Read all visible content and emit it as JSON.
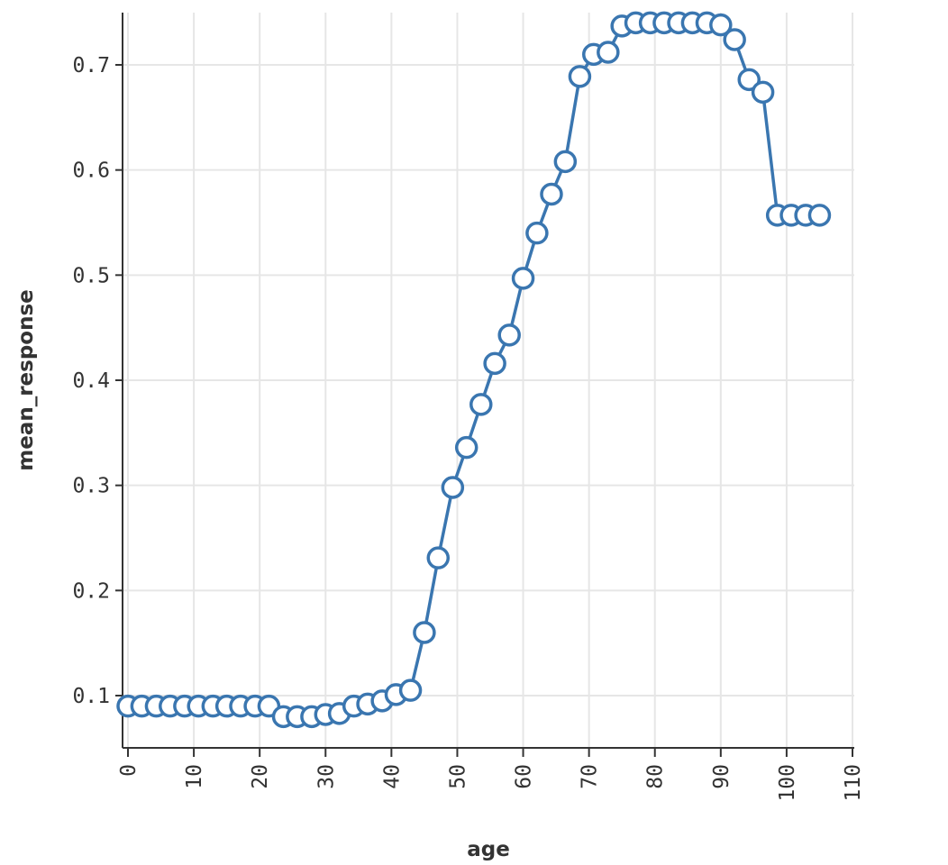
{
  "colors": {
    "series": "#3a76b0",
    "background": "#ffffff"
  },
  "chart_data": {
    "type": "line",
    "title": "",
    "xlabel": "age",
    "ylabel": "mean_response",
    "xlim": [
      0,
      110
    ],
    "ylim": [
      0.05,
      0.74
    ],
    "grid": true,
    "x_ticks": [
      0,
      10,
      20,
      30,
      40,
      50,
      60,
      70,
      80,
      90,
      100,
      110
    ],
    "y_ticks": [
      0.1,
      0.2,
      0.3,
      0.4,
      0.5,
      0.6,
      0.7
    ],
    "x_tick_labels": [
      "0",
      "10",
      "20",
      "30",
      "40",
      "50",
      "60",
      "70",
      "80",
      "90",
      "100",
      "110"
    ],
    "y_tick_labels": [
      "0.1",
      "0.2",
      "0.3",
      "0.4",
      "0.5",
      "0.6",
      "0.7"
    ],
    "marker": "circle-open",
    "series": [
      {
        "x": [
          0.0,
          2.1,
          4.3,
          6.4,
          8.6,
          10.7,
          12.9,
          15.0,
          17.1,
          19.3,
          21.4,
          23.6,
          25.7,
          27.9,
          30.0,
          32.1,
          34.3,
          36.4,
          38.6,
          40.7,
          42.9,
          45.0,
          47.1,
          49.3,
          51.4,
          53.6,
          55.7,
          57.9,
          60.0,
          62.1,
          64.3,
          66.4,
          68.6,
          70.7,
          72.9,
          75.0,
          77.1,
          79.3,
          81.4,
          83.6,
          85.7,
          87.9,
          90.0,
          92.1,
          94.3,
          96.4,
          98.6,
          100.7,
          102.9,
          105.0
        ],
        "y": [
          0.09,
          0.09,
          0.09,
          0.09,
          0.09,
          0.09,
          0.09,
          0.09,
          0.09,
          0.09,
          0.09,
          0.08,
          0.08,
          0.08,
          0.082,
          0.083,
          0.09,
          0.092,
          0.095,
          0.101,
          0.105,
          0.16,
          0.231,
          0.298,
          0.336,
          0.377,
          0.416,
          0.443,
          0.497,
          0.54,
          0.577,
          0.608,
          0.689,
          0.71,
          0.712,
          0.737,
          0.74,
          0.74,
          0.74,
          0.74,
          0.74,
          0.74,
          0.738,
          0.724,
          0.686,
          0.674,
          0.557,
          0.557,
          0.557,
          0.557
        ]
      }
    ]
  }
}
